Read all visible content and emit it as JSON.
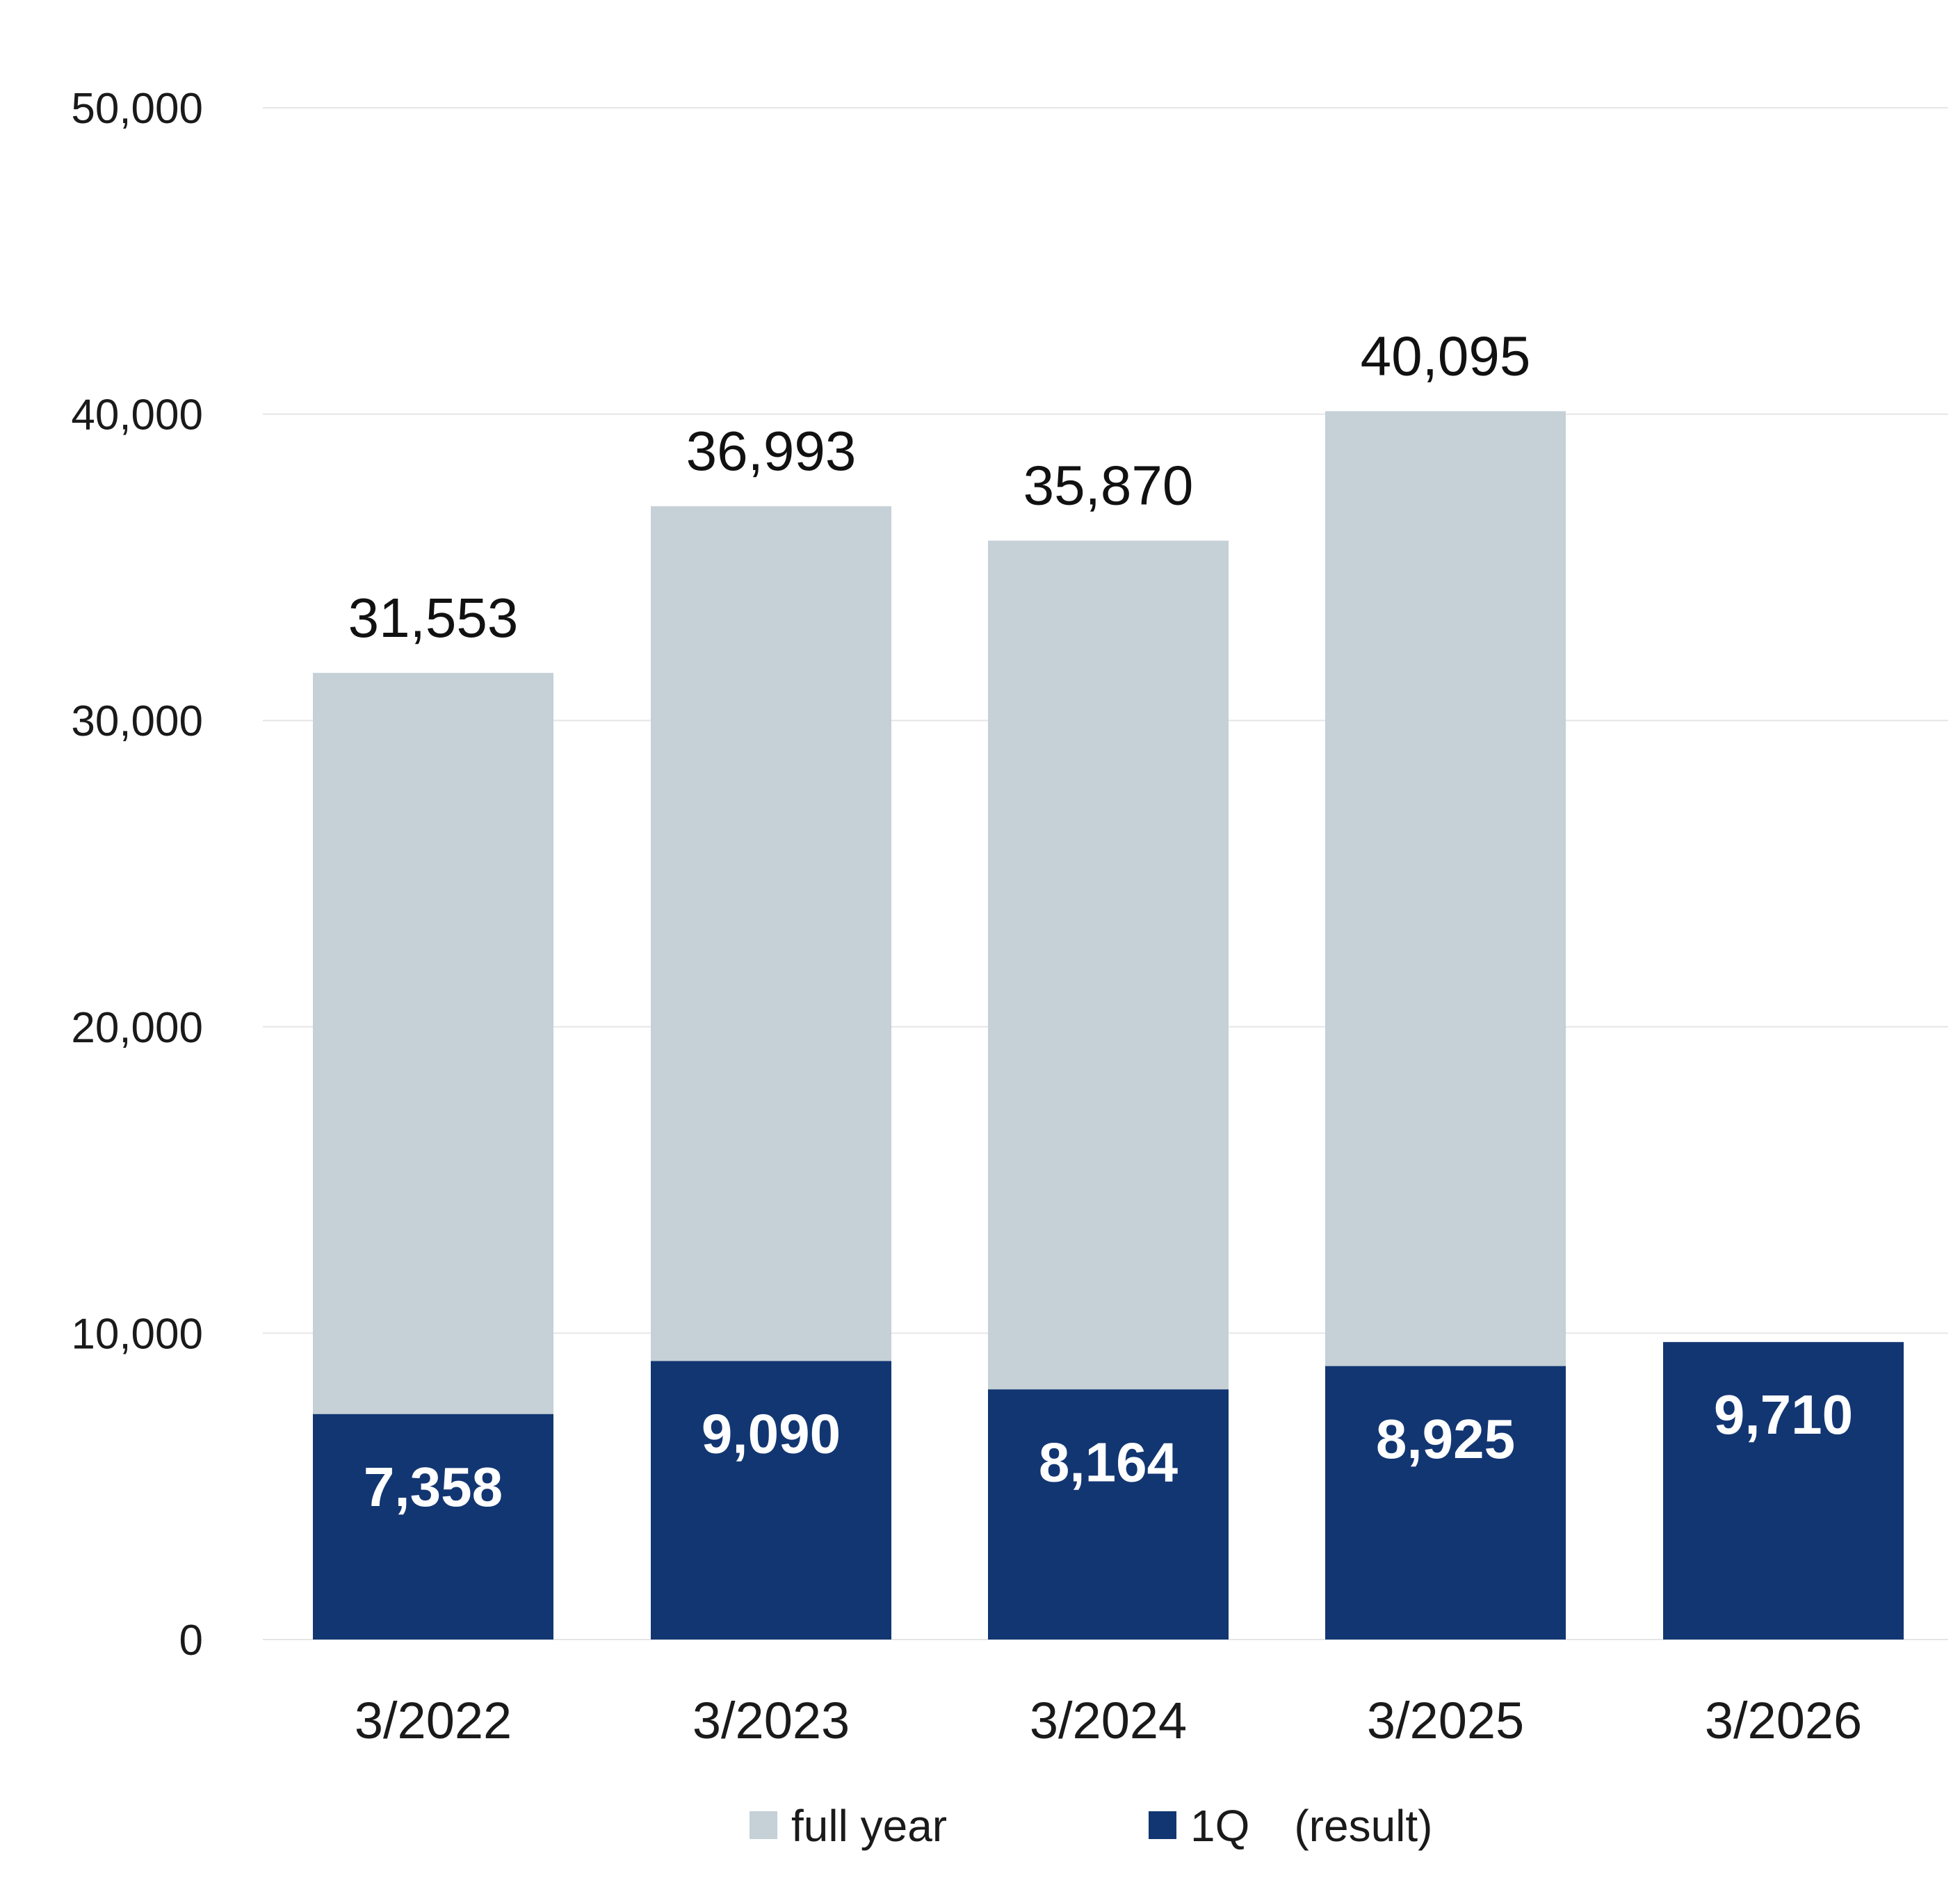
{
  "chart_data": {
    "type": "bar",
    "stacked": false,
    "categories": [
      "3/2022",
      "3/2023",
      "3/2024",
      "3/2025",
      "3/2026"
    ],
    "series": [
      {
        "name": "full year",
        "values": [
          31553,
          36993,
          35870,
          40095,
          null
        ],
        "color": "#c5d0d7",
        "labels": [
          "31,553",
          "36,993",
          "35,870",
          "40,095",
          ""
        ]
      },
      {
        "name": "1Q　(result)",
        "values": [
          7358,
          9090,
          8164,
          8925,
          9710
        ],
        "color": "#123672",
        "labels": [
          "7,358",
          "9,090",
          "8,164",
          "8,925",
          "9,710"
        ]
      }
    ],
    "y_ticks": [
      0,
      10000,
      20000,
      30000,
      40000,
      50000
    ],
    "y_tick_labels": [
      "0",
      "10,000",
      "20,000",
      "30,000",
      "40,000",
      "50,000"
    ],
    "ylim": [
      0,
      50000
    ],
    "grid": true,
    "legend_position": "bottom",
    "gridline_color": "#e6e6e6"
  }
}
